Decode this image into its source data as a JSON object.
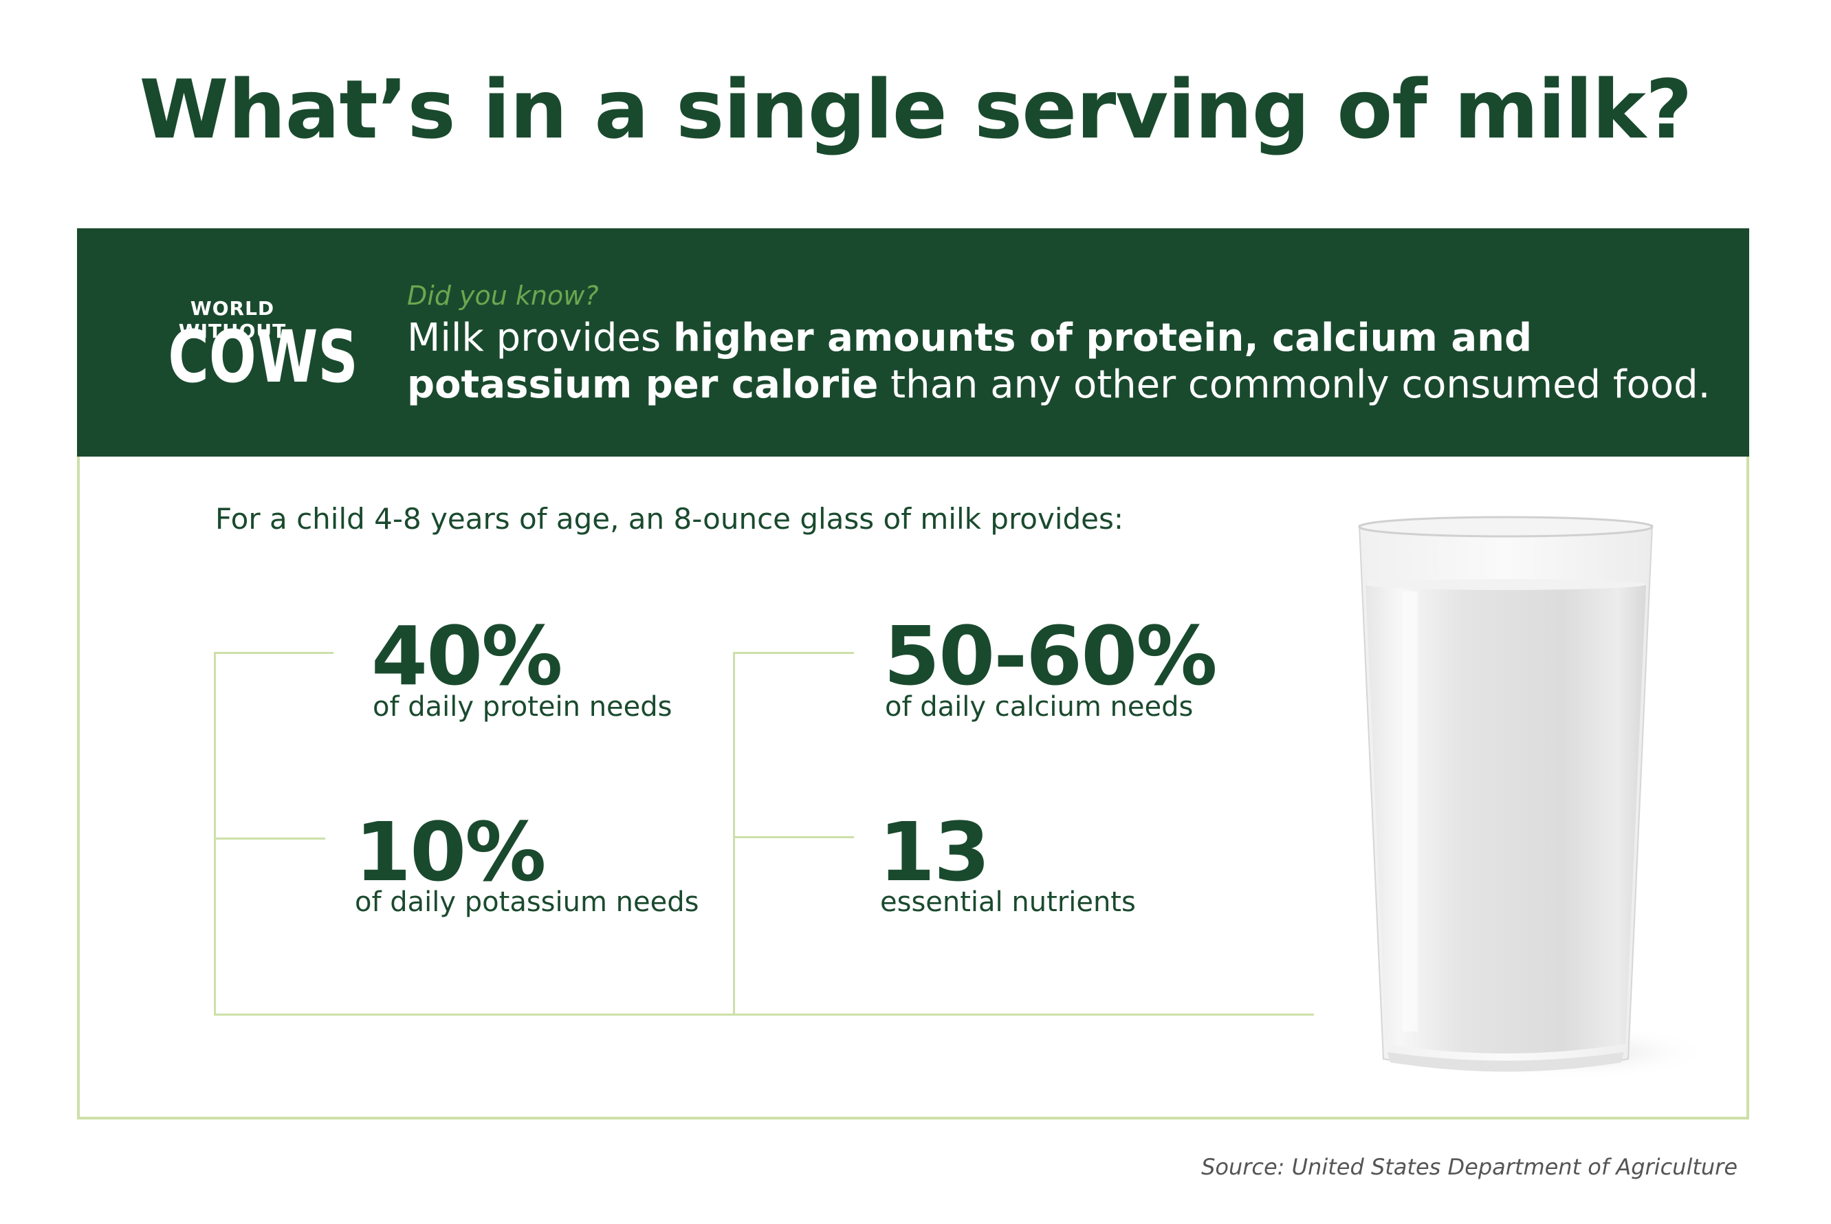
{
  "title": "What’s in a single serving of milk?",
  "logo": {
    "top": "WORLD WITHOUT",
    "main": "COWS"
  },
  "banner": {
    "eyebrow": "Did you know?",
    "text_1": "Milk provides ",
    "text_bold_1": "higher amounts of protein, calcium and potassium per calorie",
    "text_2": " than any other commonly consumed food."
  },
  "intro": "For a child 4-8 years of age, an 8-ounce glass of milk provides:",
  "stats": [
    {
      "value": "40%",
      "label": "of daily protein needs"
    },
    {
      "value": "10%",
      "label": "of daily potassium needs"
    },
    {
      "value": "50-60%",
      "label": "of daily calcium needs"
    },
    {
      "value": "13",
      "label": "essential nutrients"
    }
  ],
  "source": "Source: United States Department of Agriculture",
  "colors": {
    "dark_green": "#1a4a2e",
    "light_green": "#cde0a8",
    "accent_green": "#6aa84f"
  }
}
